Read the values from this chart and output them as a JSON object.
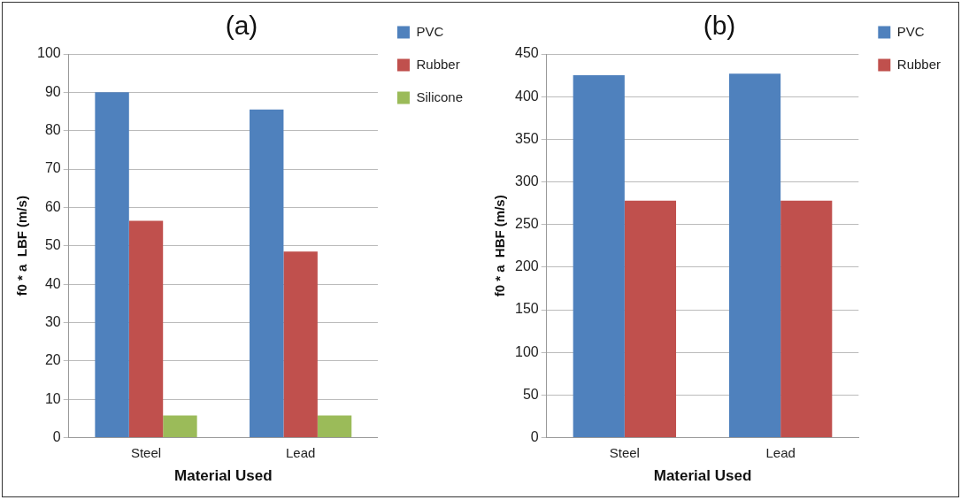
{
  "chart_data": [
    {
      "type": "bar",
      "title": "(a)",
      "xlabel": "Material Used",
      "ylabel": "f0 * a  LBF (m/s)",
      "categories": [
        "Steel",
        "Lead"
      ],
      "series": [
        {
          "name": "PVC",
          "color": "#4f81bd",
          "values": [
            90,
            85.5
          ]
        },
        {
          "name": "Rubber",
          "color": "#c0504d",
          "values": [
            56.5,
            48.5
          ]
        },
        {
          "name": "Silicone",
          "color": "#9bbb59",
          "values": [
            5.8,
            5.8
          ]
        }
      ],
      "ylim": [
        0,
        100
      ],
      "yticks": [
        0,
        10,
        20,
        30,
        40,
        50,
        60,
        70,
        80,
        90,
        100
      ],
      "grid": "y",
      "legend": "right"
    },
    {
      "type": "bar",
      "title": "(b)",
      "xlabel": "Material Used",
      "ylabel": "f0 * a  HBF (m/s)",
      "categories": [
        "Steel",
        "Lead"
      ],
      "series": [
        {
          "name": "PVC",
          "color": "#4f81bd",
          "values": [
            425,
            427
          ]
        },
        {
          "name": "Rubber",
          "color": "#c0504d",
          "values": [
            278,
            278
          ]
        }
      ],
      "ylim": [
        0,
        450
      ],
      "yticks": [
        0,
        50,
        100,
        150,
        200,
        250,
        300,
        350,
        400,
        450
      ],
      "grid": "y",
      "legend": "right"
    }
  ]
}
